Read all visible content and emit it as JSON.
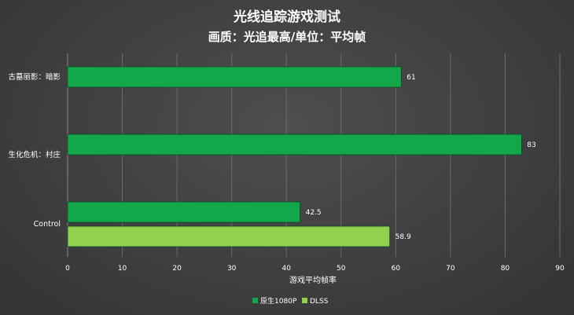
{
  "chart_data": {
    "type": "bar",
    "orientation": "horizontal",
    "title": "光线追踪游戏测试",
    "subtitle": "画质：光追最高/单位：平均帧",
    "xlabel": "游戏平均帧率",
    "ylabel": "",
    "xlim": [
      0,
      90
    ],
    "xticks": [
      0,
      10,
      20,
      30,
      40,
      50,
      60,
      70,
      80,
      90
    ],
    "grid": true,
    "legend_position": "bottom",
    "categories": [
      "古墓丽影：暗影",
      "生化危机：村庄",
      "Control"
    ],
    "series": [
      {
        "name": "原生1080P",
        "color": "#12a84a",
        "values": [
          61,
          83,
          42.5
        ]
      },
      {
        "name": "DLSS",
        "color": "#92d050",
        "values": [
          null,
          null,
          58.9
        ]
      }
    ]
  }
}
